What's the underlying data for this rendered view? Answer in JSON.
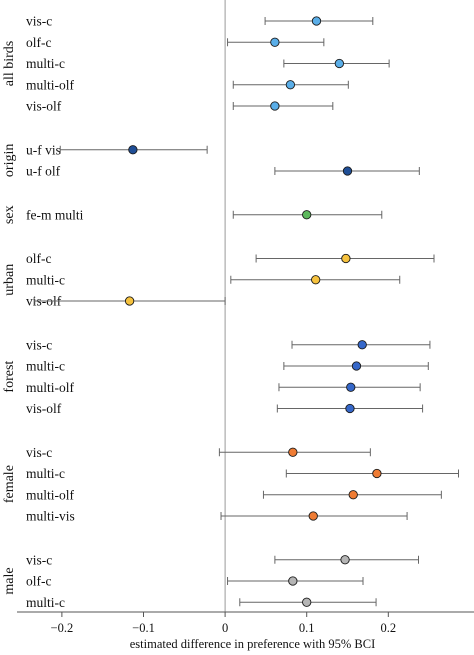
{
  "chart_data": {
    "type": "forest",
    "xlabel": "estimated difference in preference with 95% BCI",
    "xlim": [
      -0.255,
      0.305
    ],
    "xticks": [
      -0.2,
      -0.1,
      0,
      0.1,
      0.2
    ],
    "xtick_labels": [
      "−0.2",
      "−0.1",
      "0",
      "0.1",
      "0.2"
    ],
    "reference_line": 0,
    "colors": {
      "blue_light": "#5aaee8",
      "blue_dark": "#1f4e96",
      "blue_mid": "#3567c9",
      "green": "#5cb85c",
      "yellow": "#f6c23e",
      "orange": "#ef7c34",
      "grey": "#b5b5b5"
    },
    "groups": [
      {
        "label": "all birds",
        "rows": [
          {
            "label": "vis-c",
            "estimate": 0.112,
            "lower": 0.049,
            "upper": 0.181,
            "color": "#5aaee8"
          },
          {
            "label": "olf-c",
            "estimate": 0.061,
            "lower": 0.003,
            "upper": 0.121,
            "color": "#5aaee8"
          },
          {
            "label": "multi-c",
            "estimate": 0.14,
            "lower": 0.072,
            "upper": 0.201,
            "color": "#5aaee8"
          },
          {
            "label": "multi-olf",
            "estimate": 0.08,
            "lower": 0.01,
            "upper": 0.151,
            "color": "#5aaee8"
          },
          {
            "label": "vis-olf",
            "estimate": 0.061,
            "lower": 0.01,
            "upper": 0.132,
            "color": "#5aaee8"
          }
        ]
      },
      {
        "label": "origin",
        "rows": [
          {
            "label": "u-f vis",
            "estimate": -0.113,
            "lower": -0.202,
            "upper": -0.022,
            "color": "#1f4e96"
          },
          {
            "label": "u-f olf",
            "estimate": 0.15,
            "lower": 0.061,
            "upper": 0.238,
            "color": "#1f4e96"
          }
        ]
      },
      {
        "label": "sex",
        "rows": [
          {
            "label": "fe-m multi",
            "estimate": 0.1,
            "lower": 0.01,
            "upper": 0.192,
            "color": "#5cb85c"
          }
        ]
      },
      {
        "label": "urban",
        "rows": [
          {
            "label": "olf-c",
            "estimate": 0.148,
            "lower": 0.038,
            "upper": 0.256,
            "color": "#f6c23e"
          },
          {
            "label": "multi-c",
            "estimate": 0.111,
            "lower": 0.007,
            "upper": 0.214,
            "color": "#f6c23e"
          },
          {
            "label": "vis-olf",
            "estimate": -0.117,
            "lower": -0.234,
            "upper": 0.0,
            "color": "#f6c23e"
          }
        ]
      },
      {
        "label": "forest",
        "rows": [
          {
            "label": "vis-c",
            "estimate": 0.168,
            "lower": 0.082,
            "upper": 0.251,
            "color": "#3567c9"
          },
          {
            "label": "multi-c",
            "estimate": 0.161,
            "lower": 0.072,
            "upper": 0.249,
            "color": "#3567c9"
          },
          {
            "label": "multi-olf",
            "estimate": 0.154,
            "lower": 0.066,
            "upper": 0.239,
            "color": "#3567c9"
          },
          {
            "label": "vis-olf",
            "estimate": 0.153,
            "lower": 0.064,
            "upper": 0.242,
            "color": "#3567c9"
          }
        ]
      },
      {
        "label": "female",
        "rows": [
          {
            "label": "vis-c",
            "estimate": 0.083,
            "lower": -0.007,
            "upper": 0.178,
            "color": "#ef7c34"
          },
          {
            "label": "multi-c",
            "estimate": 0.186,
            "lower": 0.075,
            "upper": 0.286,
            "color": "#ef7c34"
          },
          {
            "label": "multi-olf",
            "estimate": 0.157,
            "lower": 0.047,
            "upper": 0.265,
            "color": "#ef7c34"
          },
          {
            "label": "multi-vis",
            "estimate": 0.108,
            "lower": -0.005,
            "upper": 0.223,
            "color": "#ef7c34"
          }
        ]
      },
      {
        "label": "male",
        "rows": [
          {
            "label": "vis-c",
            "estimate": 0.147,
            "lower": 0.061,
            "upper": 0.237,
            "color": "#b5b5b5"
          },
          {
            "label": "olf-c",
            "estimate": 0.083,
            "lower": 0.003,
            "upper": 0.169,
            "color": "#b5b5b5"
          },
          {
            "label": "multi-c",
            "estimate": 0.1,
            "lower": 0.018,
            "upper": 0.185,
            "color": "#b5b5b5"
          }
        ]
      }
    ]
  }
}
